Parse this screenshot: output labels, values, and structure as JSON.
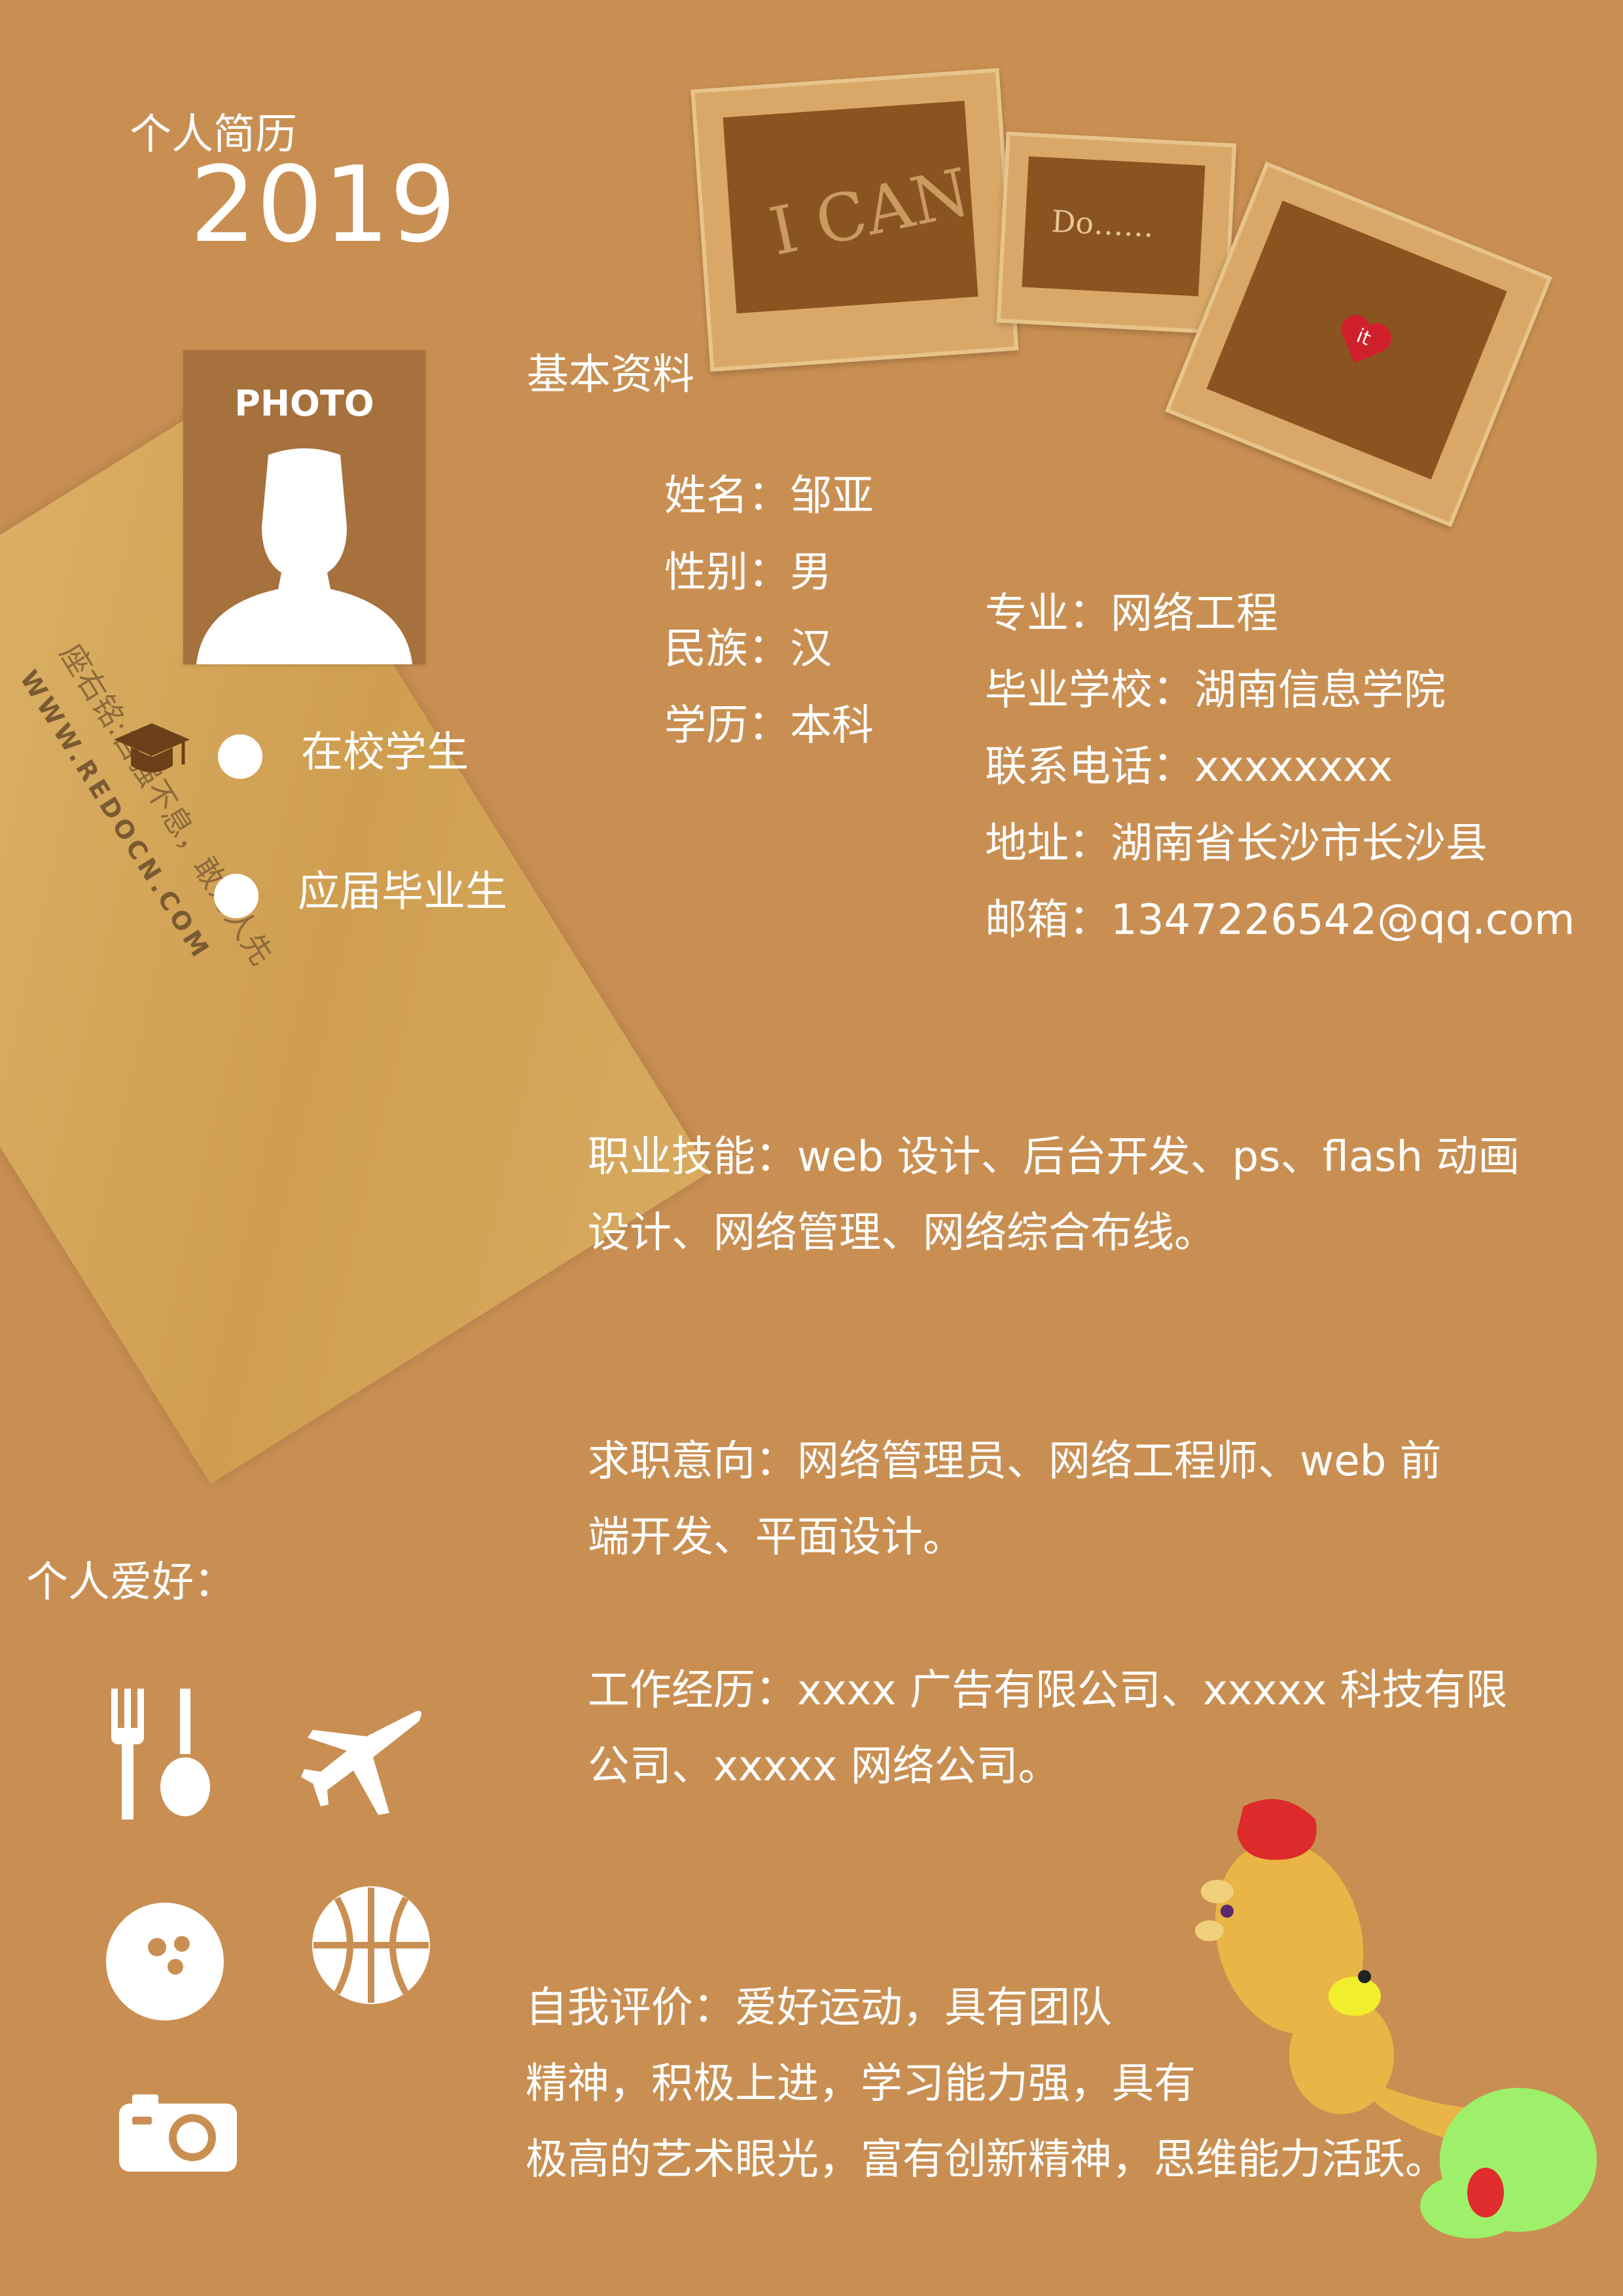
{
  "header": {
    "title": "个人简历",
    "year": "2019"
  },
  "photo": {
    "label": "PHOTO"
  },
  "decor": {
    "frame1_text": "I CAN",
    "frame2_text": "Do……",
    "heart_text": "it",
    "card_motto": "座右铭:自强不息，敢为人先",
    "card_url": "WWW.REDOCN.COM"
  },
  "basic_info": {
    "heading": "基本资料",
    "left": [
      {
        "label": "姓名：",
        "value": "邹亚"
      },
      {
        "label": "性别：",
        "value": "男"
      },
      {
        "label": "民族：",
        "value": "汉"
      },
      {
        "label": "学历：",
        "value": "本科"
      }
    ],
    "right": [
      {
        "label": "专业：",
        "value": "网络工程"
      },
      {
        "label": "毕业学校：",
        "value": "湖南信息学院"
      },
      {
        "label": "联系电话：",
        "value": "xxxxxxxx"
      },
      {
        "label": "地址：",
        "value": "湖南省长沙市长沙县"
      },
      {
        "label": "邮箱：",
        "value": "1347226542@qq.com"
      }
    ]
  },
  "status": {
    "icon": "graduation-cap-icon",
    "options": [
      "在校学生",
      "应届毕业生"
    ]
  },
  "skills": {
    "line1": "职业技能：web 设计、后台开发、ps、flash 动画",
    "line2": "设计、网络管理、网络综合布线。"
  },
  "objective": {
    "line1": "求职意向：网络管理员、网络工程师、web 前",
    "line2": "端开发、平面设计。"
  },
  "experience": {
    "line1": "工作经历：xxxx 广告有限公司、xxxxx 科技有限",
    "line2": "公司、xxxxx 网络公司。"
  },
  "evaluation": {
    "line1": "自我评价：爱好运动，具有团队",
    "line2": "精神，积极上进，学习能力强，具有",
    "line3": "极高的艺术眼光，富有创新精神，思维能力活跃。"
  },
  "hobbies": {
    "heading": "个人爱好：",
    "icons": [
      "fork-spoon-icon",
      "airplane-icon",
      "bowling-ball-icon",
      "basketball-icon",
      "camera-icon"
    ]
  },
  "colors": {
    "background": "#c98f52",
    "frame_dark": "#8a5420",
    "text": "#ffffff",
    "card": "#d9ad62"
  }
}
